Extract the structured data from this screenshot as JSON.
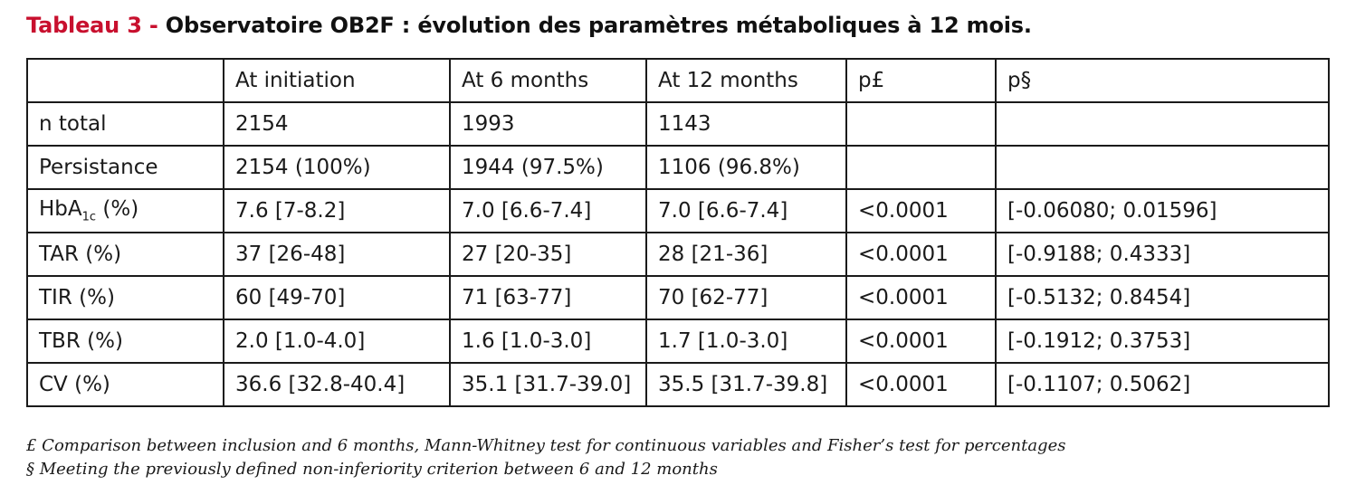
{
  "title": {
    "label": "Tableau 3 - ",
    "text": "Observatoire OB2F : évolution des paramètres métaboliques à 12 mois."
  },
  "table": {
    "headers": [
      "",
      "At initiation",
      "At 6 months",
      "At 12 months",
      "p£",
      "p§"
    ],
    "rows": [
      {
        "label": "n total",
        "sub": "",
        "suffix": "",
        "cells": [
          "2154",
          "1993",
          "1143",
          "",
          ""
        ]
      },
      {
        "label": "Persistance",
        "sub": "",
        "suffix": "",
        "cells": [
          "2154 (100%)",
          "1944 (97.5%)",
          "1106 (96.8%)",
          "",
          ""
        ]
      },
      {
        "label": "HbA",
        "sub": "1c",
        "suffix": " (%)",
        "cells": [
          "7.6 [7-8.2]",
          "7.0 [6.6-7.4]",
          "7.0 [6.6-7.4]",
          "<0.0001",
          "[-0.06080; 0.01596]"
        ]
      },
      {
        "label": "TAR (%)",
        "sub": "",
        "suffix": "",
        "cells": [
          "37 [26-48]",
          "27 [20-35]",
          "28 [21-36]",
          "<0.0001",
          "[-0.9188; 0.4333]"
        ]
      },
      {
        "label": "TIR (%)",
        "sub": "",
        "suffix": "",
        "cells": [
          "60 [49-70]",
          "71 [63-77]",
          "70 [62-77]",
          "<0.0001",
          "[-0.5132; 0.8454]"
        ]
      },
      {
        "label": "TBR (%)",
        "sub": "",
        "suffix": "",
        "cells": [
          "2.0 [1.0-4.0]",
          "1.6 [1.0-3.0]",
          "1.7 [1.0-3.0]",
          "<0.0001",
          "[-0.1912; 0.3753]"
        ]
      },
      {
        "label": "CV (%)",
        "sub": "",
        "suffix": "",
        "cells": [
          "36.6 [32.8-40.4]",
          "35.1 [31.7-39.0]",
          "35.5 [31.7-39.8]",
          "<0.0001",
          "[-0.1107; 0.5062]"
        ]
      }
    ]
  },
  "footnotes": [
    "£ Comparison between inclusion and 6 months, Mann-Whitney test for continuous variables and Fisher’s test for percentages",
    "§ Meeting the previously defined non-inferiority criterion between 6 and 12 months"
  ],
  "colors": {
    "title_accent": "#c8102e",
    "text": "#111111",
    "border": "#1a1a1a"
  }
}
